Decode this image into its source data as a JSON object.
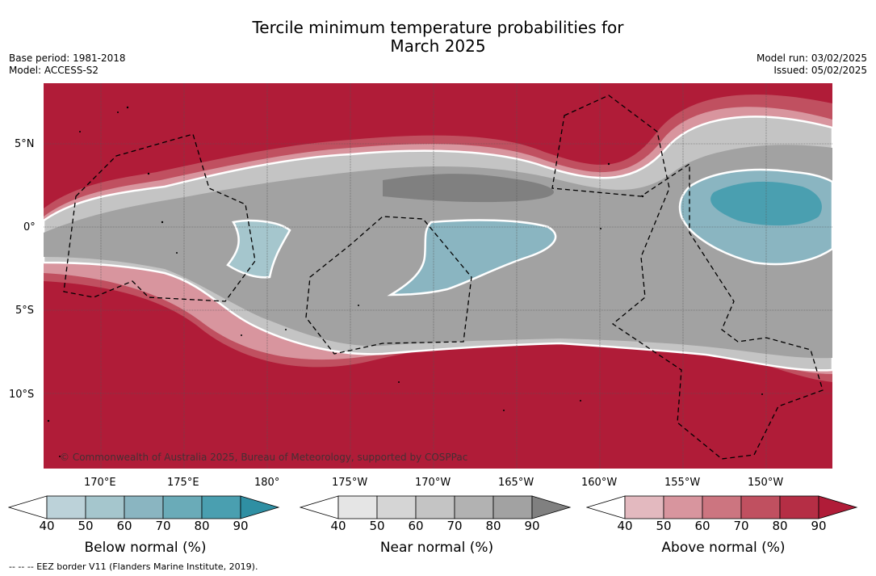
{
  "header": {
    "title_line1": "Tercile minimum temperature probabilities for",
    "title_line2": "March 2025",
    "base_period": "Base period: 1981-2018",
    "model": "Model: ACCESS-S2",
    "model_run": "Model run: 03/02/2025",
    "issued": "Issued: 05/02/2025"
  },
  "map": {
    "lat_ticks": [
      "5°N",
      "0°",
      "5°S",
      "10°S"
    ],
    "lon_ticks": [
      "170°E",
      "175°E",
      "180°",
      "175°W",
      "170°W",
      "165°W",
      "160°W",
      "155°W",
      "150°W"
    ],
    "copyright": "© Commonwealth of Australia 2025, Bureau of Meteorology, supported by COSPPac",
    "dominant_category": "above normal (>90%) outside the equatorial band; near normal along the equator; below normal in three patches"
  },
  "legends": [
    {
      "title": "Below normal (%)",
      "labels": [
        "40",
        "50",
        "60",
        "70",
        "80",
        "90"
      ],
      "colors": [
        "#ffffff",
        "#bcd2d9",
        "#a5c6cd",
        "#8ab5c1",
        "#6aabb8",
        "#4a9fb0",
        "#2f8fa3"
      ]
    },
    {
      "title": "Near normal (%)",
      "labels": [
        "40",
        "50",
        "60",
        "70",
        "80",
        "90"
      ],
      "colors": [
        "#ffffff",
        "#e5e5e5",
        "#d5d5d5",
        "#c4c4c4",
        "#b2b2b2",
        "#a2a2a2",
        "#808080"
      ]
    },
    {
      "title": "Above normal (%)",
      "labels": [
        "40",
        "50",
        "60",
        "70",
        "80",
        "90"
      ],
      "colors": [
        "#ffffff",
        "#e3b9bf",
        "#d8959e",
        "#cc7580",
        "#c05060",
        "#b52e45",
        "#b01c38"
      ]
    }
  ],
  "footer": "-- -- -- EEZ border V11 (Flanders Marine Institute, 2019)."
}
